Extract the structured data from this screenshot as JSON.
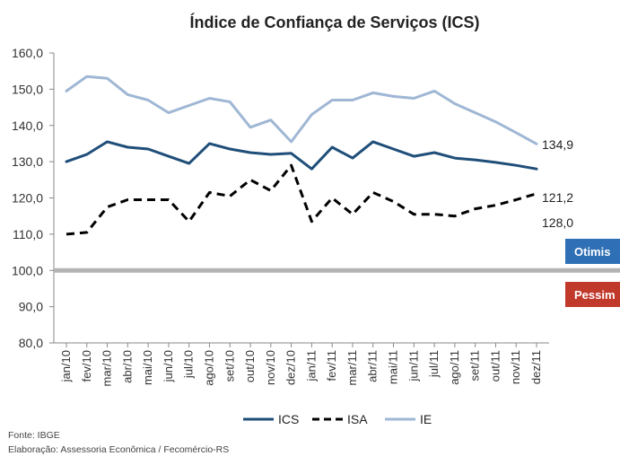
{
  "chart_data": {
    "type": "line",
    "title": "Índice de Confiança de Serviços (ICS)",
    "xlabel": "",
    "ylabel": "",
    "ylim": [
      80,
      160
    ],
    "yticks": [
      "80,0",
      "90,0",
      "100,0",
      "110,0",
      "120,0",
      "130,0",
      "140,0",
      "150,0",
      "160,0"
    ],
    "categories": [
      "jan/10",
      "fev/10",
      "mar/10",
      "abr/10",
      "mai/10",
      "jun/10",
      "jul/10",
      "ago/10",
      "set/10",
      "out/10",
      "nov/10",
      "dez/10",
      "jan/11",
      "fev/11",
      "mar/11",
      "abr/11",
      "mai/11",
      "jun/11",
      "jul/11",
      "ago/11",
      "set/11",
      "out/11",
      "nov/11",
      "dez/11"
    ],
    "series": [
      {
        "name": "ICS",
        "color": "#1f4e79",
        "style": "solid",
        "values": [
          130.0,
          132.0,
          135.5,
          134.0,
          133.5,
          131.5,
          129.5,
          135.0,
          133.5,
          132.5,
          132.0,
          132.3,
          128.0,
          134.0,
          131.0,
          135.5,
          133.5,
          131.5,
          132.5,
          131.0,
          130.5,
          129.8,
          129.0,
          128.0
        ]
      },
      {
        "name": "ISA",
        "color": "#000000",
        "style": "dashed",
        "values": [
          110.0,
          110.5,
          117.5,
          119.5,
          119.5,
          119.5,
          113.5,
          121.5,
          120.5,
          125.0,
          122.0,
          129.0,
          113.5,
          120.0,
          115.5,
          121.5,
          119.0,
          115.5,
          115.5,
          115.0,
          117.0,
          118.0,
          119.5,
          121.2
        ]
      },
      {
        "name": "IE",
        "color": "#9fb7d4",
        "style": "solid",
        "values": [
          149.5,
          153.5,
          153.0,
          148.5,
          147.0,
          143.5,
          145.5,
          147.5,
          146.5,
          139.5,
          141.5,
          135.5,
          143.0,
          147.0,
          147.0,
          149.0,
          148.0,
          147.5,
          149.5,
          146.0,
          143.5,
          141.0,
          138.0,
          134.9
        ]
      }
    ],
    "end_labels": [
      "134,9",
      "128,0",
      "121,2"
    ],
    "reference_line": {
      "value": 100,
      "color": "#b3b3b3"
    },
    "badges": [
      {
        "text": "Otimis",
        "color": "#2e6fb5"
      },
      {
        "text": "Pessim",
        "color": "#c0392b"
      }
    ],
    "legend": {
      "placement": "bottom",
      "items": [
        "ICS",
        "ISA",
        "IE"
      ]
    },
    "grid": false
  },
  "notes": {
    "source": "Fonte: IBGE",
    "prepared_by": "Elaboração: Assessoria Econômica / Fecomércio-RS"
  }
}
